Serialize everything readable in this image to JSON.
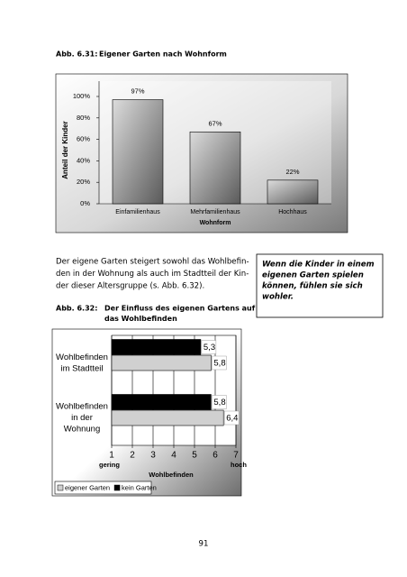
{
  "chart_data": [
    {
      "type": "bar",
      "caption": "Abb. 6.31:",
      "title": "Eigener Garten nach Wohnform",
      "categories": [
        "Einfamilienhaus",
        "Mehrfamilienhaus",
        "Hochhaus"
      ],
      "values": [
        97,
        67,
        22
      ],
      "value_labels": [
        "97%",
        "67%",
        "22%"
      ],
      "color": "#8c8c8c",
      "ylim": [
        0,
        100
      ],
      "yticks": [
        {
          "value": 0,
          "label": "0%"
        },
        {
          "value": 20,
          "label": "20%"
        },
        {
          "value": 40,
          "label": "40%"
        },
        {
          "value": 60,
          "label": "60%"
        },
        {
          "value": 80,
          "label": "80%"
        },
        {
          "value": 100,
          "label": "100%"
        }
      ],
      "y_label": "Anteil der Kinder",
      "x_label": "Wohnform",
      "grid": false
    },
    {
      "type": "hbar",
      "caption": "Abb. 6.32:",
      "title_lines": [
        "Der Einfluss des eigenen Gartens auf",
        "das Wohlbefinden"
      ],
      "categories": [
        [
          "Wohlbefinden",
          "im Stadtteil"
        ],
        [
          "Wohlbefinden",
          "in der",
          "Wohnung"
        ]
      ],
      "series": [
        {
          "name": "eigener Garten",
          "color": "#d0d0d0",
          "values": [
            5.8,
            6.4
          ],
          "value_labels": [
            "5,8",
            "6,4"
          ]
        },
        {
          "name": "kein Garten",
          "color": "#000000",
          "values": [
            5.3,
            5.8
          ],
          "value_labels": [
            "5,3",
            "5,8"
          ]
        }
      ],
      "xlim": [
        1,
        7
      ],
      "xticks": [
        1,
        2,
        3,
        4,
        5,
        6,
        7
      ],
      "x_label": "Wohlbefinden",
      "x_low": "gering",
      "x_high": "hoch",
      "grid": true
    }
  ],
  "body_text": [
    "Der eigene Garten steigert sowohl das Wohlbefin-",
    "den in der Wohnung als auch im Stadtteil der Kin-",
    "der dieser Altersgruppe (s. Abb. 6.32)."
  ],
  "sidebar": [
    "Wenn die Kinder in einem",
    "eigenen Garten spielen",
    "können, fühlen sie sich",
    "wohler."
  ],
  "page_number": "91"
}
